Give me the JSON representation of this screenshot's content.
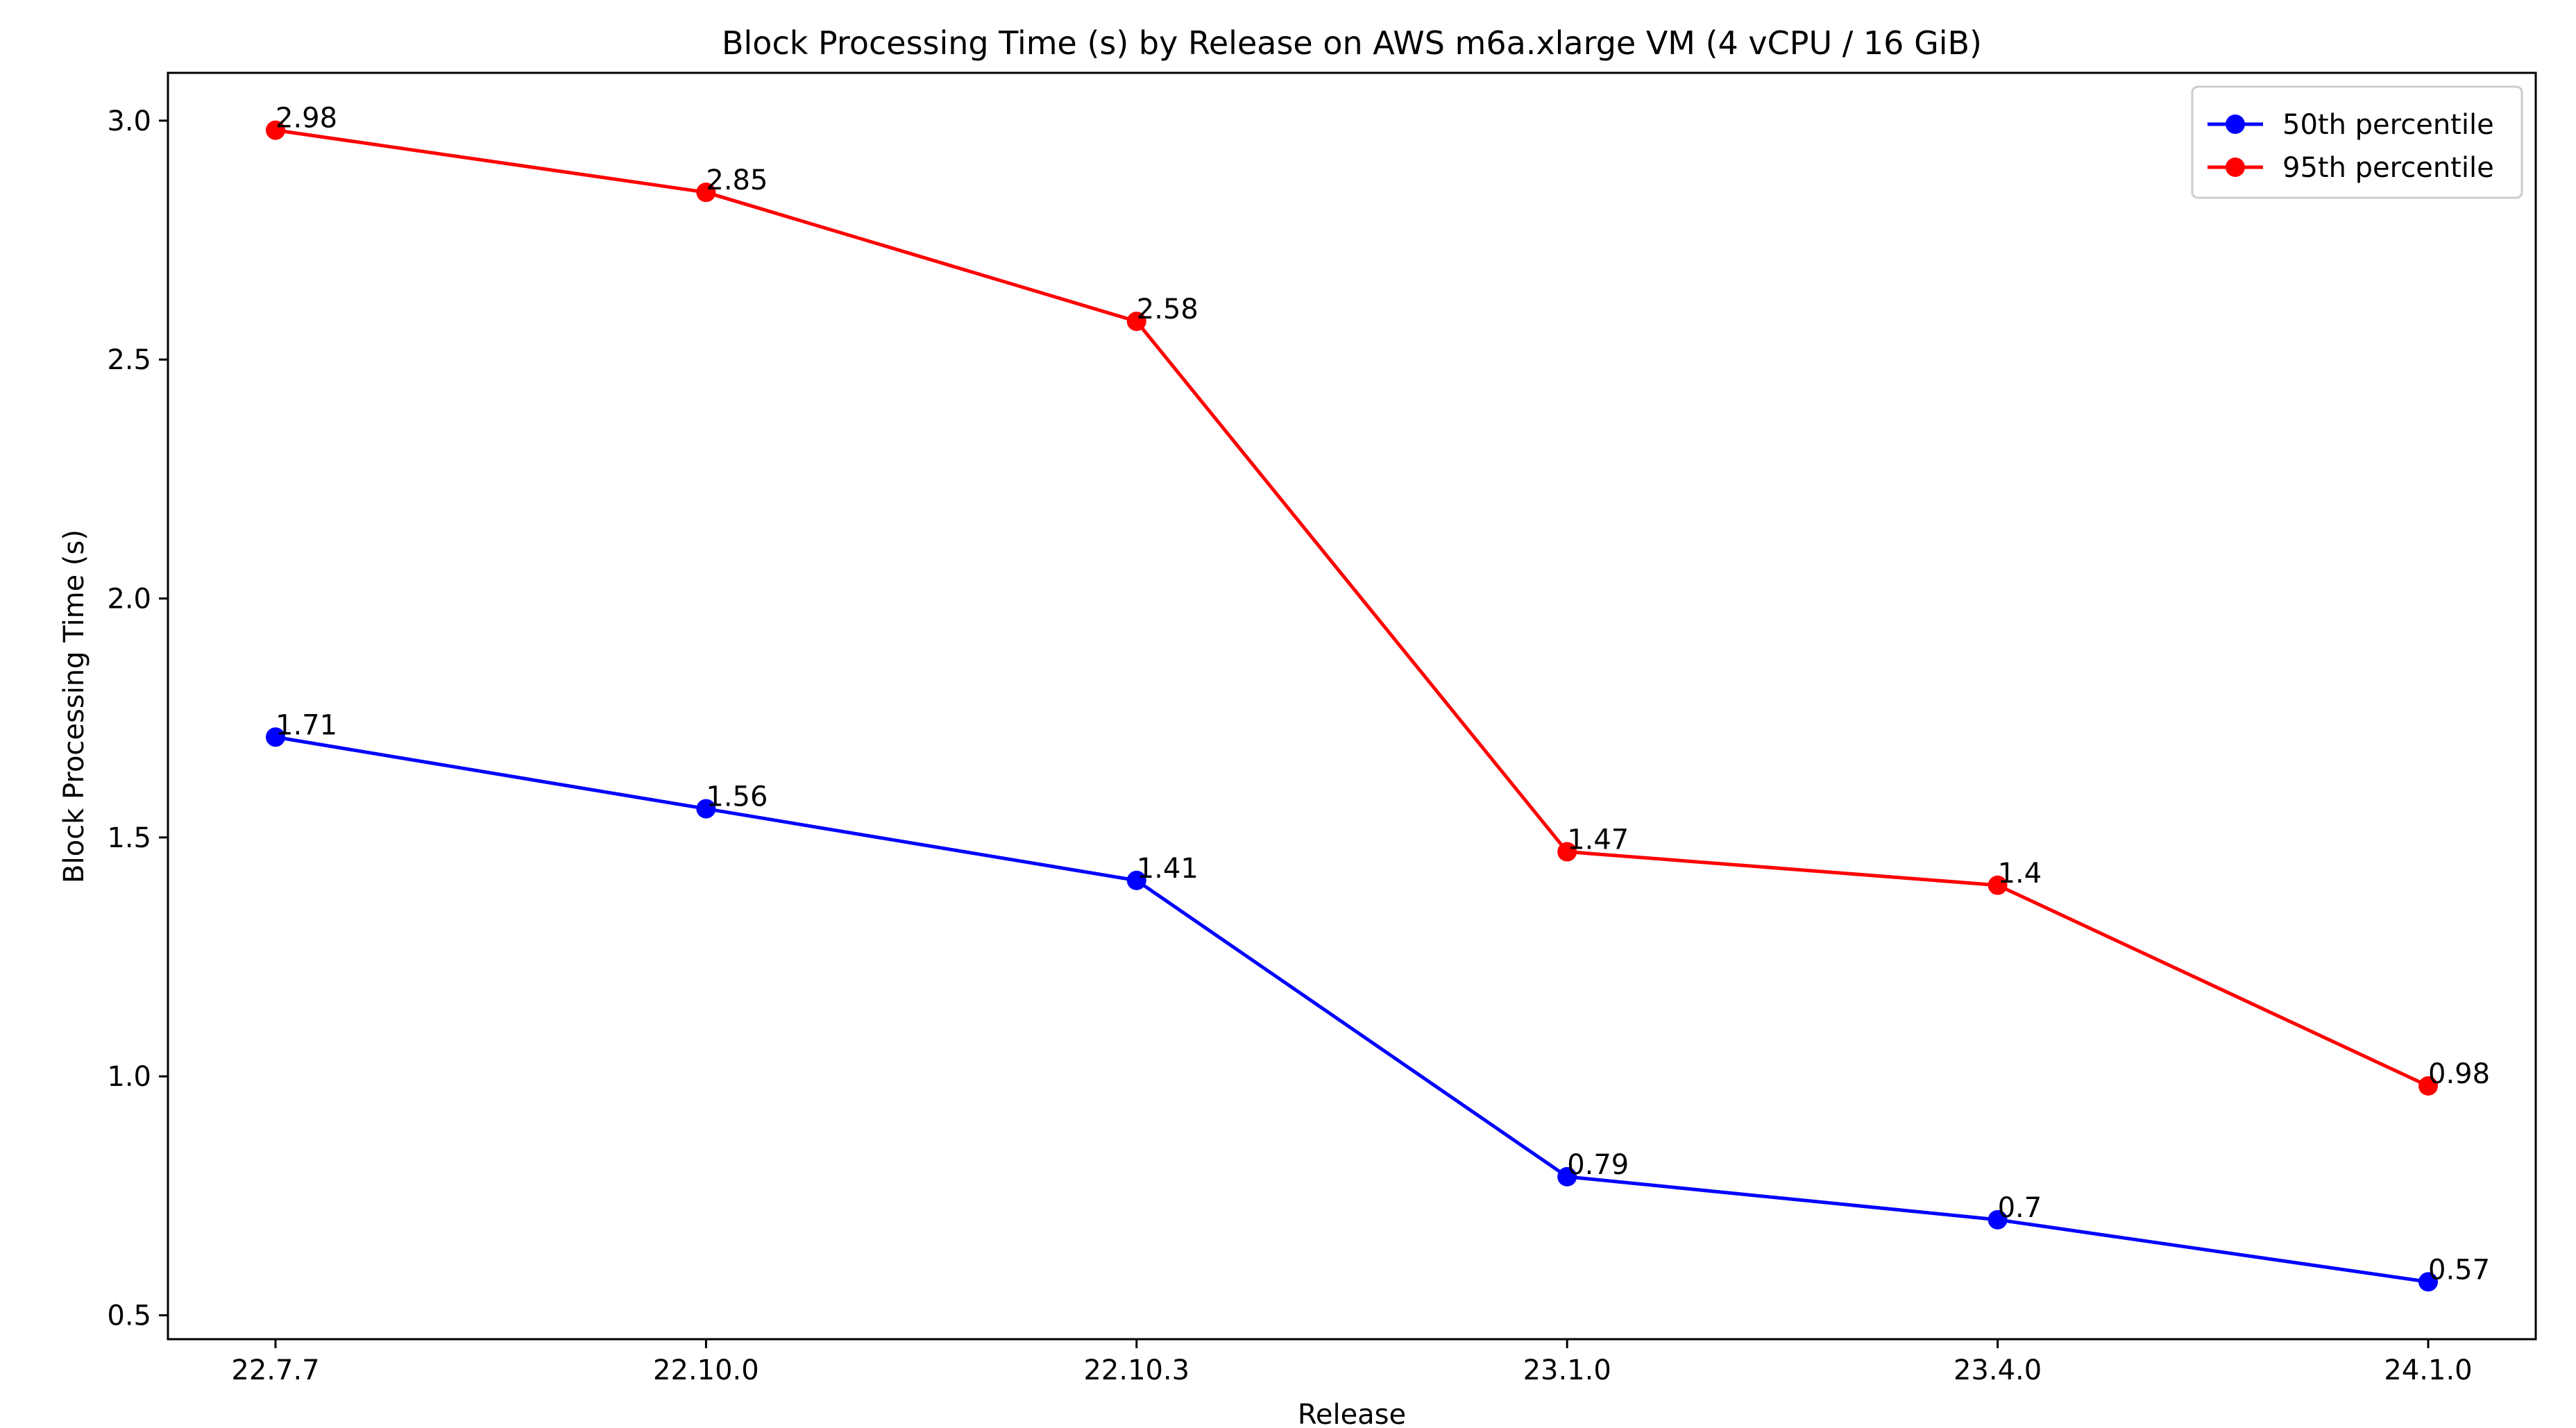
{
  "chart_data": {
    "type": "line",
    "title": "Block Processing Time (s) by Release on AWS m6a.xlarge VM (4 vCPU / 16 GiB)",
    "xlabel": "Release",
    "ylabel": "Block Processing Time (s)",
    "categories": [
      "22.7.7",
      "22.10.0",
      "22.10.3",
      "23.1.0",
      "23.4.0",
      "24.1.0"
    ],
    "ylim": [
      0.45,
      3.1
    ],
    "yticks": [
      0.5,
      1.0,
      1.5,
      2.0,
      2.5,
      3.0
    ],
    "ytick_labels": [
      "0.5",
      "1.0",
      "1.5",
      "2.0",
      "2.5",
      "3.0"
    ],
    "grid": false,
    "legend_position": "top-right",
    "series": [
      {
        "name": "50th percentile",
        "color": "#0000ff",
        "marker": "circle",
        "values": [
          1.71,
          1.56,
          1.41,
          0.79,
          0.7,
          0.57
        ],
        "labels": [
          "1.71",
          "1.56",
          "1.41",
          "0.79",
          "0.7",
          "0.57"
        ]
      },
      {
        "name": "95th percentile",
        "color": "#ff0000",
        "marker": "circle",
        "values": [
          2.98,
          2.85,
          2.58,
          1.47,
          1.4,
          0.98
        ],
        "labels": [
          "2.98",
          "2.85",
          "2.58",
          "1.47",
          "1.4",
          "0.98"
        ]
      }
    ]
  }
}
